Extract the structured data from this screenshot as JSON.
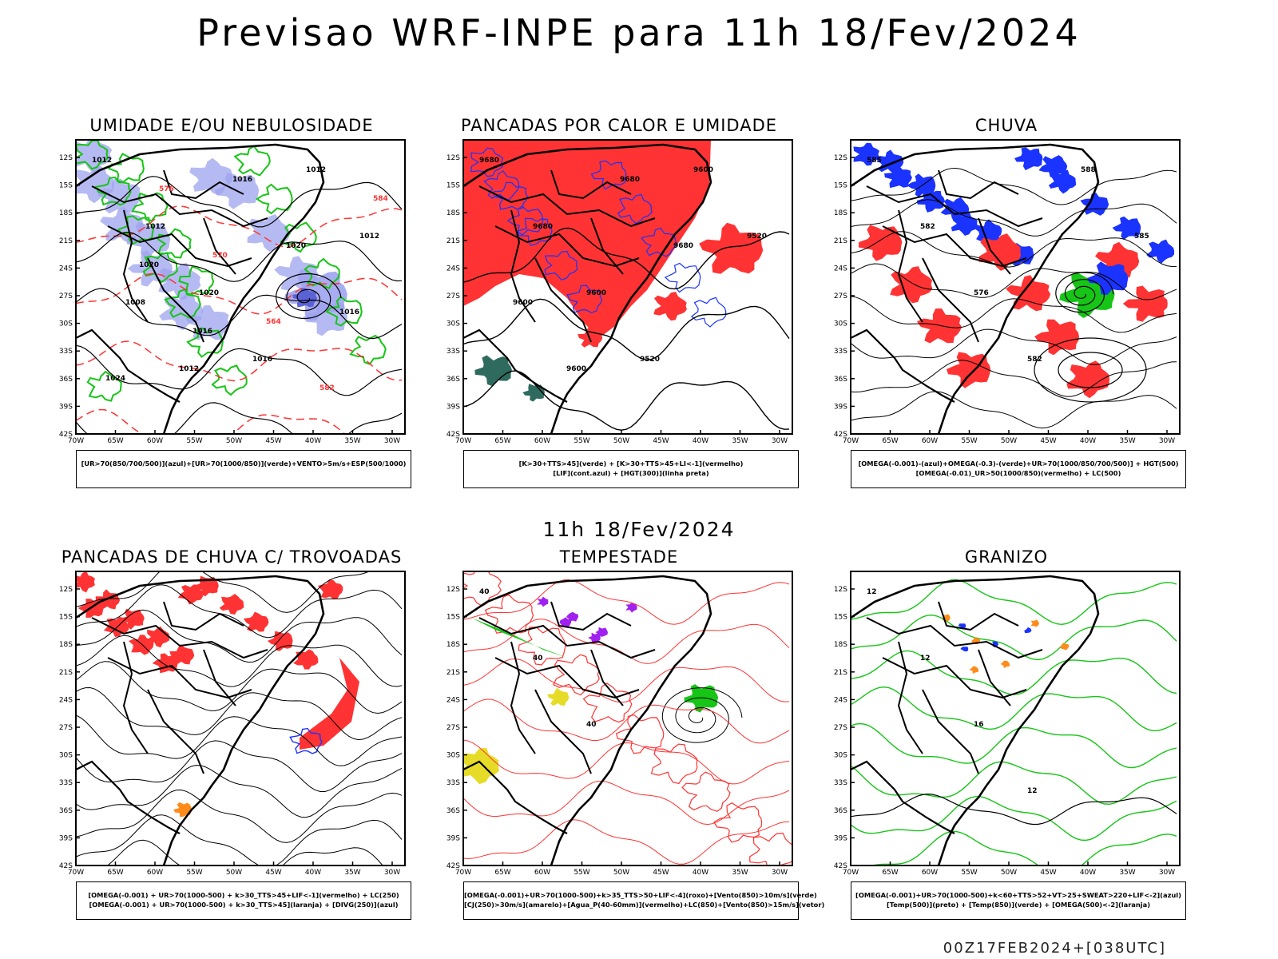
{
  "header": {
    "title": "Previsao WRF-INPE  para 11h 18/Fev/2024",
    "subtitle": "11h 18/Fev/2024",
    "footer": "00Z17FEB2024+[038UTC]"
  },
  "axes": {
    "lat_labels": [
      "12S",
      "15S",
      "18S",
      "21S",
      "24S",
      "27S",
      "30S",
      "33S",
      "36S",
      "39S",
      "42S"
    ],
    "lon_labels": [
      "70W",
      "65W",
      "60W",
      "55W",
      "50W",
      "45W",
      "40W",
      "35W",
      "30W"
    ]
  },
  "colors": {
    "blue": "#1a33ff",
    "lavender": "#9ea3ee",
    "green": "#16c516",
    "red": "#ff3333",
    "dark_teal": "#2e6b5e",
    "purple": "#a020f0",
    "yellow": "#e6dc28",
    "orange": "#ff8c1a",
    "black": "#000000"
  },
  "panels": [
    {
      "id": "umidade",
      "title": "UMIDADE E/OU NEBULOSIDADE",
      "legend": [
        "[UR>70(850/700/500)](azul)+[UR>70(1000/850)](verde)+VENTO>5m/s+ESP(500/1000)"
      ],
      "labels": [
        "1012",
        "1012",
        "1020",
        "1016",
        "1012",
        "1012",
        "1008",
        "1012",
        "1016",
        "1020",
        "1016",
        "1024",
        "576",
        "570",
        "564",
        "582",
        "584",
        "1020",
        "1016"
      ]
    },
    {
      "id": "pancadas-calor",
      "title": "PANCADAS POR CALOR E UMIDADE",
      "legend": [
        "[K>30+TTS>45](verde) + [K>30+TTS>45+LI<-1](vermelho)",
        "[LIF](cont.azul) + [HGT(300)](linha preta)"
      ],
      "labels": [
        "9680",
        "9680",
        "9600",
        "9520",
        "9600",
        "9520",
        "9600",
        "9600",
        "9680",
        "9680"
      ]
    },
    {
      "id": "chuva",
      "title": "CHUVA",
      "legend": [
        "[OMEGA(-0.001)-(azul)+OMEGA(-0.3)-(verde)+UR>70(1000/850/700/500)] + HGT(500)",
        "[OMEGA(-0.01)_UR>50(1000/850)(vermelho) + LC(500)"
      ],
      "labels": [
        "585",
        "582",
        "576",
        "582",
        "588",
        "585"
      ]
    },
    {
      "id": "trovoadas",
      "title": "PANCADAS DE CHUVA C/ TROVOADAS",
      "legend": [
        "[OMEGA(-0.001) + UR>70(1000-500) + k>30_TTS>45+LIF<-1](vermelho) + LC(250)",
        "[OMEGA(-0.001) + UR>70(1000-500) + k>30_TTS>45](laranja) + [DIVG(250)](azul)"
      ],
      "labels": []
    },
    {
      "id": "tempestade",
      "title": "TEMPESTADE",
      "legend": [
        "[OMEGA(-0.001)+UR>70(1000-500)+k>35_TTS>50+LIF<-4](roxo)+[Vento(850)>10m/s](verde)",
        "[CJ(250)>30m/s](amarelo)+[Agua_P(40-60mm)](vermelho)+LC(850)+[Vento(850)>15m/s](vetor)"
      ],
      "labels": [
        "40",
        "40",
        "40"
      ]
    },
    {
      "id": "granizo",
      "title": "GRANIZO",
      "legend": [
        "[OMEGA(-0.001)+UR>70(1000-500)+k<60+TTS>52+VT>25+SWEAT>220+LIF<-2](azul)",
        "[Temp(500)](preto) + [Temp(850)](verde) + [OMEGA(500)<-2](laranja)"
      ],
      "labels": [
        "12",
        "12",
        "16",
        "12"
      ]
    }
  ]
}
